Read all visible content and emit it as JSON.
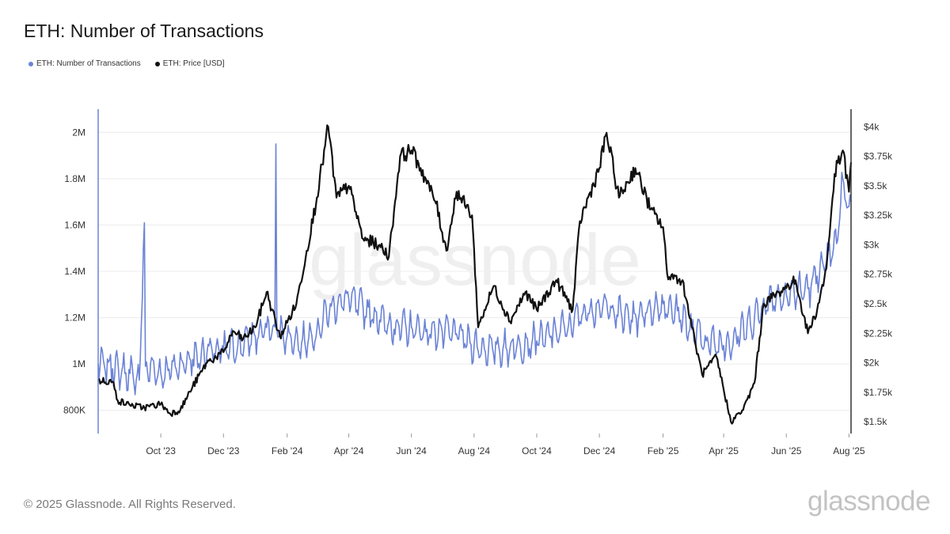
{
  "title": "ETH: Number of Transactions",
  "footer": "© 2025 Glassnode. All Rights Reserved.",
  "brand": "glassnode",
  "watermark": "glassnode",
  "colors": {
    "transactions": "#6b83d6",
    "price": "#111111",
    "grid": "#ececec",
    "axis": "#6b83d6",
    "axis_right": "#333333"
  },
  "chart_data": {
    "type": "line",
    "title": "ETH: Number of Transactions",
    "legend_placement": "top-left",
    "grid": true,
    "x_range": [
      "2023-08-01",
      "2025-08-03"
    ],
    "x_ticks": [
      {
        "label": "Oct '23",
        "date": "2023-10-01"
      },
      {
        "label": "Dec '23",
        "date": "2023-12-01"
      },
      {
        "label": "Feb '24",
        "date": "2024-02-01"
      },
      {
        "label": "Apr '24",
        "date": "2024-04-01"
      },
      {
        "label": "Jun '24",
        "date": "2024-06-01"
      },
      {
        "label": "Aug '24",
        "date": "2024-08-01"
      },
      {
        "label": "Oct '24",
        "date": "2024-10-01"
      },
      {
        "label": "Dec '24",
        "date": "2024-12-01"
      },
      {
        "label": "Feb '25",
        "date": "2025-02-01"
      },
      {
        "label": "Apr '25",
        "date": "2025-04-01"
      },
      {
        "label": "Jun '25",
        "date": "2025-06-01"
      },
      {
        "label": "Aug '25",
        "date": "2025-08-01"
      }
    ],
    "y_left": {
      "range": [
        700000,
        2100000
      ],
      "ticks": [
        {
          "label": "800K",
          "value": 800000
        },
        {
          "label": "1M",
          "value": 1000000
        },
        {
          "label": "1.2M",
          "value": 1200000
        },
        {
          "label": "1.4M",
          "value": 1400000
        },
        {
          "label": "1.6M",
          "value": 1600000
        },
        {
          "label": "1.8M",
          "value": 1800000
        },
        {
          "label": "2M",
          "value": 2000000
        }
      ]
    },
    "y_right": {
      "range": [
        1400,
        4150
      ],
      "ticks": [
        {
          "label": "$1.5k",
          "value": 1500
        },
        {
          "label": "$1.75k",
          "value": 1750
        },
        {
          "label": "$2k",
          "value": 2000
        },
        {
          "label": "$2.25k",
          "value": 2250
        },
        {
          "label": "$2.5k",
          "value": 2500
        },
        {
          "label": "$2.75k",
          "value": 2750
        },
        {
          "label": "$3k",
          "value": 3000
        },
        {
          "label": "$3.25k",
          "value": 3250
        },
        {
          "label": "$3.5k",
          "value": 3500
        },
        {
          "label": "$3.75k",
          "value": 3750
        },
        {
          "label": "$4k",
          "value": 4000
        }
      ]
    },
    "series": [
      {
        "name": "ETH: Number of Transactions",
        "axis": "left",
        "points": [
          [
            "2023-08-01",
            1000000
          ],
          [
            "2023-08-15",
            980000
          ],
          [
            "2023-09-01",
            960000
          ],
          [
            "2023-09-10",
            930000
          ],
          [
            "2023-09-15",
            1610000
          ],
          [
            "2023-09-16",
            990000
          ],
          [
            "2023-10-01",
            960000
          ],
          [
            "2023-10-15",
            990000
          ],
          [
            "2023-11-01",
            1020000
          ],
          [
            "2023-11-15",
            1050000
          ],
          [
            "2023-12-01",
            1060000
          ],
          [
            "2023-12-15",
            1080000
          ],
          [
            "2024-01-01",
            1120000
          ],
          [
            "2024-01-10",
            1140000
          ],
          [
            "2024-01-20",
            1160000
          ],
          [
            "2024-01-21",
            1950000
          ],
          [
            "2024-01-22",
            1150000
          ],
          [
            "2024-02-01",
            1120000
          ],
          [
            "2024-02-15",
            1090000
          ],
          [
            "2024-03-01",
            1150000
          ],
          [
            "2024-03-15",
            1250000
          ],
          [
            "2024-04-01",
            1280000
          ],
          [
            "2024-04-15",
            1240000
          ],
          [
            "2024-05-01",
            1190000
          ],
          [
            "2024-05-15",
            1150000
          ],
          [
            "2024-06-01",
            1160000
          ],
          [
            "2024-06-15",
            1140000
          ],
          [
            "2024-07-01",
            1140000
          ],
          [
            "2024-07-15",
            1130000
          ],
          [
            "2024-08-01",
            1080000
          ],
          [
            "2024-08-15",
            1060000
          ],
          [
            "2024-09-01",
            1070000
          ],
          [
            "2024-09-15",
            1080000
          ],
          [
            "2024-10-01",
            1100000
          ],
          [
            "2024-10-15",
            1120000
          ],
          [
            "2024-11-01",
            1170000
          ],
          [
            "2024-11-15",
            1220000
          ],
          [
            "2024-12-01",
            1250000
          ],
          [
            "2024-12-15",
            1230000
          ],
          [
            "2025-01-01",
            1190000
          ],
          [
            "2025-01-15",
            1220000
          ],
          [
            "2025-02-01",
            1260000
          ],
          [
            "2025-02-15",
            1230000
          ],
          [
            "2025-03-01",
            1150000
          ],
          [
            "2025-03-15",
            1100000
          ],
          [
            "2025-04-01",
            1080000
          ],
          [
            "2025-04-15",
            1120000
          ],
          [
            "2025-05-01",
            1200000
          ],
          [
            "2025-05-15",
            1280000
          ],
          [
            "2025-06-01",
            1300000
          ],
          [
            "2025-06-15",
            1320000
          ],
          [
            "2025-06-25",
            1330000
          ],
          [
            "2025-07-01",
            1380000
          ],
          [
            "2025-07-10",
            1440000
          ],
          [
            "2025-07-20",
            1520000
          ],
          [
            "2025-07-26",
            1800000
          ],
          [
            "2025-08-01",
            1680000
          ],
          [
            "2025-08-03",
            1700000
          ]
        ]
      },
      {
        "name": "ETH: Price [USD]",
        "axis": "right",
        "points": [
          [
            "2023-08-01",
            1850
          ],
          [
            "2023-08-15",
            1840
          ],
          [
            "2023-08-20",
            1680
          ],
          [
            "2023-09-01",
            1640
          ],
          [
            "2023-09-15",
            1620
          ],
          [
            "2023-10-01",
            1650
          ],
          [
            "2023-10-10",
            1570
          ],
          [
            "2023-10-20",
            1600
          ],
          [
            "2023-11-01",
            1800
          ],
          [
            "2023-11-15",
            2000
          ],
          [
            "2023-12-01",
            2090
          ],
          [
            "2023-12-10",
            2270
          ],
          [
            "2023-12-20",
            2200
          ],
          [
            "2024-01-01",
            2300
          ],
          [
            "2024-01-12",
            2600
          ],
          [
            "2024-01-25",
            2220
          ],
          [
            "2024-02-10",
            2500
          ],
          [
            "2024-02-20",
            2950
          ],
          [
            "2024-03-01",
            3400
          ],
          [
            "2024-03-12",
            4000
          ],
          [
            "2024-03-20",
            3400
          ],
          [
            "2024-04-01",
            3500
          ],
          [
            "2024-04-15",
            3050
          ],
          [
            "2024-05-01",
            3000
          ],
          [
            "2024-05-10",
            2900
          ],
          [
            "2024-05-21",
            3750
          ],
          [
            "2024-06-01",
            3800
          ],
          [
            "2024-06-10",
            3650
          ],
          [
            "2024-06-25",
            3350
          ],
          [
            "2024-07-05",
            2950
          ],
          [
            "2024-07-15",
            3450
          ],
          [
            "2024-07-30",
            3250
          ],
          [
            "2024-08-05",
            2300
          ],
          [
            "2024-08-20",
            2650
          ],
          [
            "2024-09-05",
            2350
          ],
          [
            "2024-09-20",
            2600
          ],
          [
            "2024-10-01",
            2450
          ],
          [
            "2024-10-20",
            2700
          ],
          [
            "2024-11-05",
            2450
          ],
          [
            "2024-11-12",
            3200
          ],
          [
            "2024-12-01",
            3650
          ],
          [
            "2024-12-08",
            3950
          ],
          [
            "2024-12-20",
            3400
          ],
          [
            "2025-01-05",
            3650
          ],
          [
            "2025-01-20",
            3300
          ],
          [
            "2025-02-01",
            3150
          ],
          [
            "2025-02-05",
            2750
          ],
          [
            "2025-02-20",
            2700
          ],
          [
            "2025-03-01",
            2300
          ],
          [
            "2025-03-11",
            1900
          ],
          [
            "2025-03-25",
            2050
          ],
          [
            "2025-04-08",
            1500
          ],
          [
            "2025-04-20",
            1600
          ],
          [
            "2025-05-01",
            1830
          ],
          [
            "2025-05-10",
            2500
          ],
          [
            "2025-05-25",
            2600
          ],
          [
            "2025-06-10",
            2700
          ],
          [
            "2025-06-22",
            2250
          ],
          [
            "2025-07-01",
            2450
          ],
          [
            "2025-07-10",
            2800
          ],
          [
            "2025-07-18",
            3600
          ],
          [
            "2025-07-26",
            3800
          ],
          [
            "2025-08-01",
            3450
          ],
          [
            "2025-08-03",
            3700
          ]
        ]
      }
    ]
  }
}
